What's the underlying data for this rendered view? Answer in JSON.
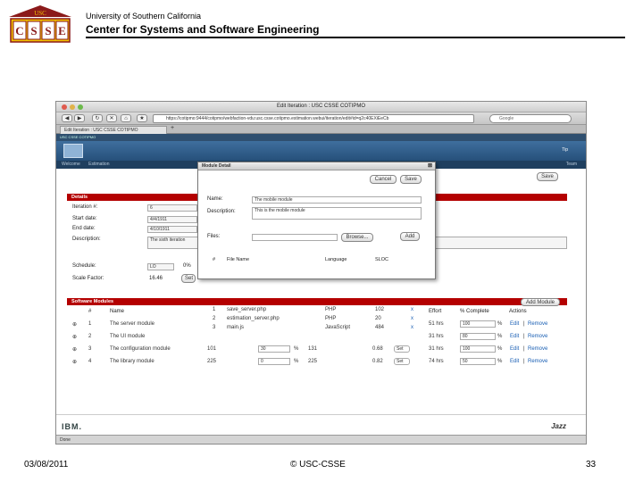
{
  "slide": {
    "university": "University of Southern California",
    "center": "Center for Systems and Software Engineering",
    "logo_top": "USC",
    "logo_letters": [
      "C",
      "S",
      "S",
      "E"
    ],
    "date": "03/08/2011",
    "copyright": "© USC-CSSE",
    "page": "33"
  },
  "browser": {
    "window_title": "Edit Iteration : USC CSSE COTIPMO",
    "url": "https://cotipmo:9444/cotipmo/webfaction-vdu:usc.csse.cotipmo.estimation.webui/iteration/edit#id=q2c40EXiEeCb",
    "search_placeholder": "Google",
    "tab_label": "Edit Iteration : USC CSSE COTIPMO",
    "tab_plus": "+",
    "status": "Done"
  },
  "app": {
    "top_label": "USC CSSE COTIPMO",
    "banner_right": "Tip",
    "nav_welcome": "Welcome",
    "nav_estimation": "Estimation",
    "nav_right": "Team",
    "save_label": "Save",
    "details_title": "Details",
    "details": {
      "iteration_label": "Iteration #:",
      "iteration_value": "6",
      "start_label": "Start date:",
      "start_value": "4/4/1911",
      "end_label": "End date:",
      "end_value": "4/10/1911",
      "desc_label": "Description:",
      "desc_value": "The sixth iteration",
      "schedule_label": "Schedule:",
      "schedule_value": "LO",
      "schedule_pct": "0%",
      "scale_label": "Scale Factor:",
      "scale_value": "16.46",
      "set_label": "Set"
    },
    "modules_title": "Software Modules",
    "add_module": "Add Module",
    "columns": {
      "num": "#",
      "name": "Name",
      "effort": "Effort",
      "pct": "% Complete",
      "actions": "Actions"
    },
    "modules": [
      {
        "num": "1",
        "name": "The server module",
        "effort": "51 hrs",
        "pct": "100",
        "edit": "Edit",
        "sep": "|",
        "remove": "Remove"
      },
      {
        "num": "2",
        "name": "The UI module",
        "effort": "31 hrs",
        "pct": "80",
        "edit": "Edit",
        "sep": "|",
        "remove": "Remove"
      },
      {
        "num": "3",
        "name": "The configuration module",
        "sloc": "101",
        "pct_col": "30",
        "pctsign": "%",
        "total": "131",
        "ratio": "0.68",
        "set": "Set",
        "effort": "31 hrs",
        "pct": "100",
        "edit": "Edit",
        "sep": "|",
        "remove": "Remove"
      },
      {
        "num": "4",
        "name": "The library module",
        "sloc": "225",
        "pct_col": "0",
        "pctsign": "%",
        "total": "225",
        "ratio": "0.82",
        "set": "Set",
        "effort": "74 hrs",
        "pct": "50",
        "edit": "Edit",
        "sep": "|",
        "remove": "Remove"
      }
    ],
    "footer_ibm": "IBM.",
    "footer_jazz": "Jazz"
  },
  "modal": {
    "title": "Module Detail",
    "close": "⊠",
    "cancel": "Cancel",
    "save": "Save",
    "name_label": "Name:",
    "name_value": "The mobile module",
    "desc_label": "Description:",
    "desc_value": "This is the mobile module",
    "files_label": "Files:",
    "browse": "Browse...",
    "add": "Add",
    "file_columns": {
      "num": "#",
      "name": "File Name",
      "lang": "Language",
      "sloc": "SLOC"
    },
    "files": [
      {
        "num": "1",
        "name": "save_server.php",
        "lang": "PHP",
        "sloc": "102",
        "x": "x"
      },
      {
        "num": "2",
        "name": "estimation_server.php",
        "lang": "PHP",
        "sloc": "20",
        "x": "x"
      },
      {
        "num": "3",
        "name": "main.js",
        "lang": "JavaScript",
        "sloc": "484",
        "x": "x"
      }
    ]
  }
}
